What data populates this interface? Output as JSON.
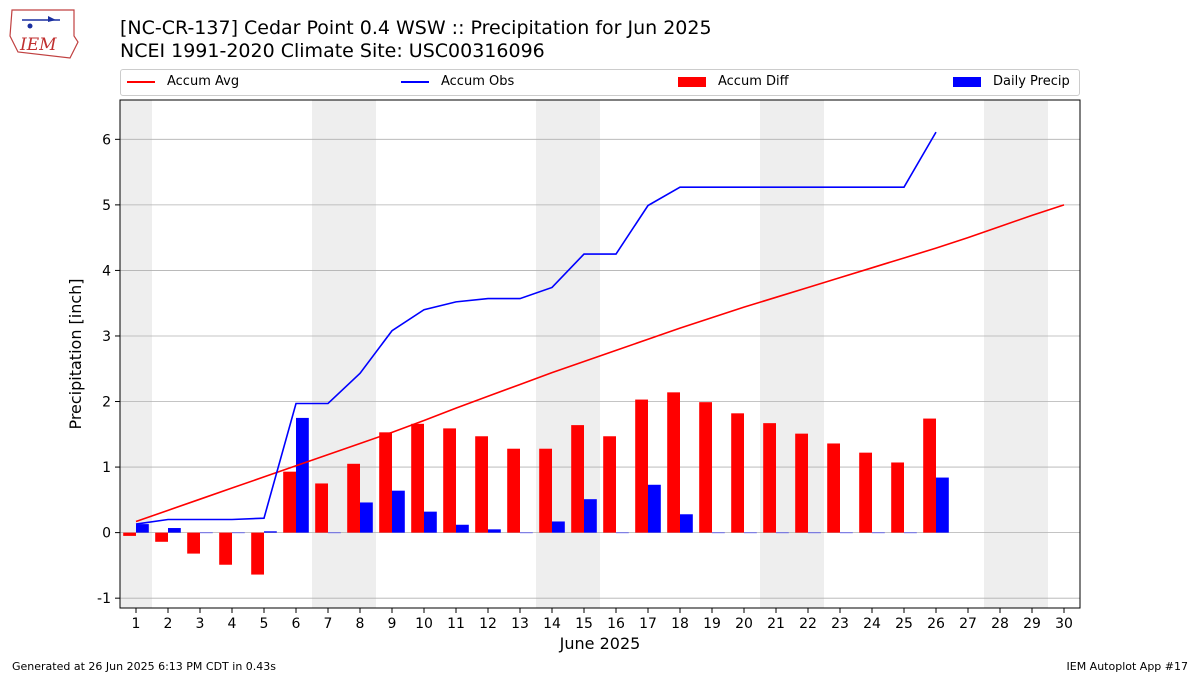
{
  "header": {
    "title_line1": "[NC-CR-137] Cedar Point 0.4 WSW :: Precipitation for Jun 2025",
    "title_line2": "NCEI 1991-2020 Climate Site: USC00316096",
    "logo_text": "IEM"
  },
  "legend": {
    "accum_avg": "Accum Avg",
    "accum_obs": "Accum Obs",
    "accum_diff": "Accum Diff",
    "daily_precip": "Daily Precip"
  },
  "colors": {
    "accum_avg": "#ff0000",
    "accum_obs": "#0000ff",
    "accum_diff": "#ff0000",
    "daily_precip": "#0000ff",
    "weekend_shade": "#eeeeee",
    "grid": "#b0b0b0"
  },
  "footer": {
    "left": "Generated at 26 Jun 2025 6:13 PM CDT in 0.43s",
    "right": "IEM Autoplot App #17"
  },
  "chart_data": {
    "type": "bar",
    "xlabel": "June 2025",
    "ylabel": "Precipitation [inch]",
    "xlim": [
      0.5,
      30.5
    ],
    "ylim": [
      -1.15,
      6.6
    ],
    "yticks": [
      -1,
      0,
      1,
      2,
      3,
      4,
      5,
      6
    ],
    "xticks": [
      1,
      2,
      3,
      4,
      5,
      6,
      7,
      8,
      9,
      10,
      11,
      12,
      13,
      14,
      15,
      16,
      17,
      18,
      19,
      20,
      21,
      22,
      23,
      24,
      25,
      26,
      27,
      28,
      29,
      30
    ],
    "grid": "y",
    "legend_position": "top",
    "weekend_shading": [
      [
        0.5,
        1.5
      ],
      [
        6.5,
        8.5
      ],
      [
        13.5,
        15.5
      ],
      [
        20.5,
        22.5
      ],
      [
        27.5,
        29.5
      ]
    ],
    "days": [
      1,
      2,
      3,
      4,
      5,
      6,
      7,
      8,
      9,
      10,
      11,
      12,
      13,
      14,
      15,
      16,
      17,
      18,
      19,
      20,
      21,
      22,
      23,
      24,
      25,
      26,
      27,
      28,
      29,
      30
    ],
    "series": [
      {
        "name": "Accum Avg",
        "kind": "line",
        "values": [
          0.17,
          0.34,
          0.51,
          0.68,
          0.85,
          1.02,
          1.19,
          1.36,
          1.53,
          1.71,
          1.9,
          2.08,
          2.26,
          2.44,
          2.61,
          2.78,
          2.95,
          3.12,
          3.28,
          3.44,
          3.59,
          3.74,
          3.89,
          4.04,
          4.19,
          4.34,
          4.5,
          4.67,
          4.84,
          5.0
        ]
      },
      {
        "name": "Accum Obs",
        "kind": "line",
        "values": [
          0.13,
          0.2,
          0.2,
          0.2,
          0.22,
          1.97,
          1.97,
          2.43,
          3.08,
          3.4,
          3.52,
          3.57,
          3.57,
          3.74,
          4.25,
          4.25,
          4.99,
          5.27,
          5.27,
          5.27,
          5.27,
          5.27,
          5.27,
          5.27,
          5.27,
          6.11
        ]
      },
      {
        "name": "Accum Diff",
        "kind": "bar",
        "values": [
          -0.05,
          -0.14,
          -0.32,
          -0.49,
          -0.64,
          0.93,
          0.75,
          1.05,
          1.53,
          1.66,
          1.59,
          1.47,
          1.28,
          1.28,
          1.64,
          1.47,
          2.03,
          2.14,
          1.99,
          1.82,
          1.67,
          1.51,
          1.36,
          1.22,
          1.07,
          1.74
        ]
      },
      {
        "name": "Daily Precip",
        "kind": "bar",
        "values": [
          0.13,
          0.07,
          0.0,
          0.0,
          0.02,
          1.75,
          0.0,
          0.46,
          0.64,
          0.32,
          0.12,
          0.05,
          0.0,
          0.17,
          0.51,
          0.0,
          0.73,
          0.28,
          0.0,
          0.0,
          0.0,
          0.0,
          0.0,
          0.0,
          0.0,
          0.84
        ]
      }
    ]
  }
}
